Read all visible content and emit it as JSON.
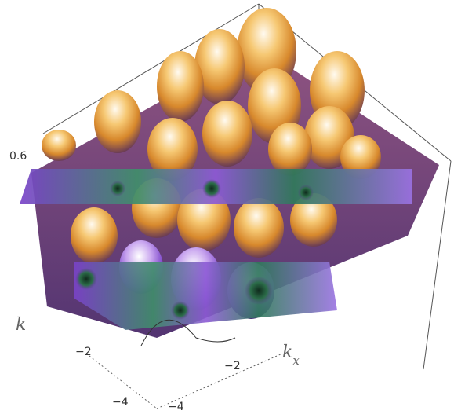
{
  "chart_data": {
    "type": "surface3d",
    "title": "",
    "xlabel": "k_x",
    "ylabel": "k_y",
    "zlabel": "",
    "z_tick_labels": [
      "0.6"
    ],
    "x_tick_labels": [
      "−2",
      "−4"
    ],
    "y_tick_labels": [
      "−2",
      "−4"
    ],
    "surface": "periodic array of bumps (approx. 4×4 visible peaks) with colored cut-plane slices",
    "colors": {
      "peak": "#fff2d8",
      "upper": "#f2a63a",
      "mid": "#9a5a78",
      "valley": "#2c6e4a",
      "cut_plane": "#7a43c9",
      "cut_plane_light": "#c9b0f2"
    }
  }
}
